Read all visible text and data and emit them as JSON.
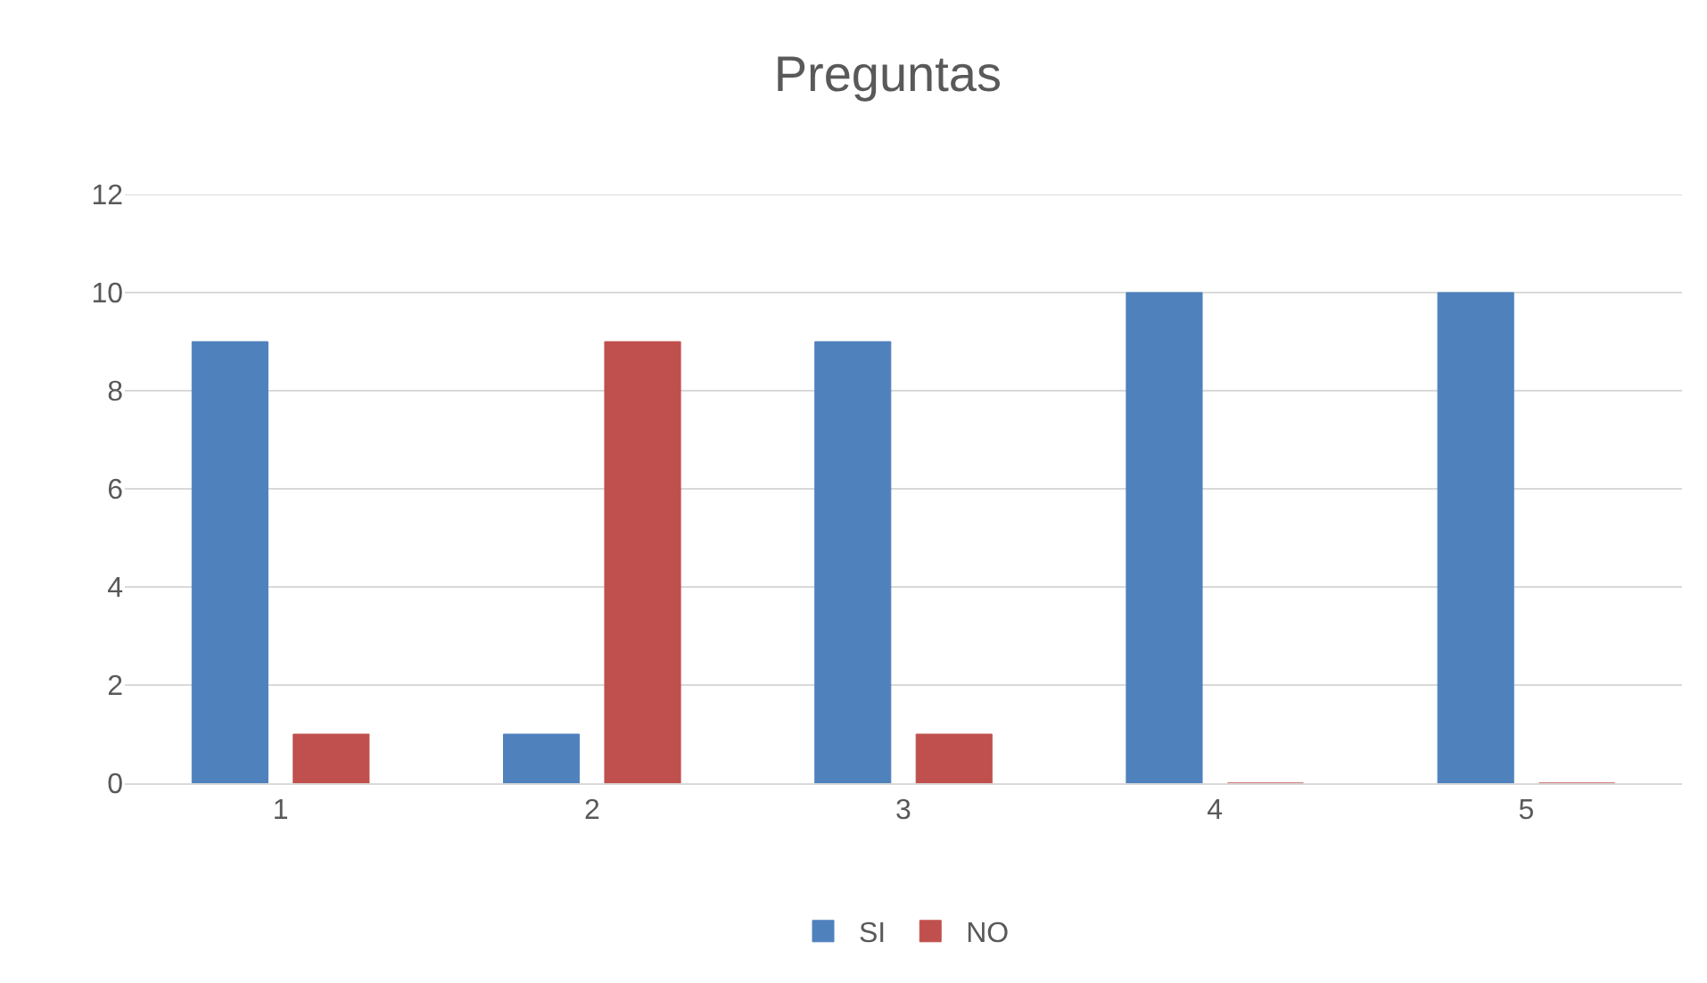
{
  "chart_data": {
    "type": "bar",
    "title": "Preguntas",
    "categories": [
      "1",
      "2",
      "3",
      "4",
      "5"
    ],
    "series": [
      {
        "name": "SI",
        "color": "#4f81bd",
        "values": [
          9,
          1,
          9,
          10,
          10
        ]
      },
      {
        "name": "NO",
        "color": "#c0504d",
        "values": [
          1,
          9,
          1,
          0,
          0
        ]
      }
    ],
    "ylim": [
      0,
      12
    ],
    "yticks": [
      0,
      2,
      4,
      6,
      8,
      10,
      12
    ],
    "grid": "y",
    "legend": "bottom"
  }
}
